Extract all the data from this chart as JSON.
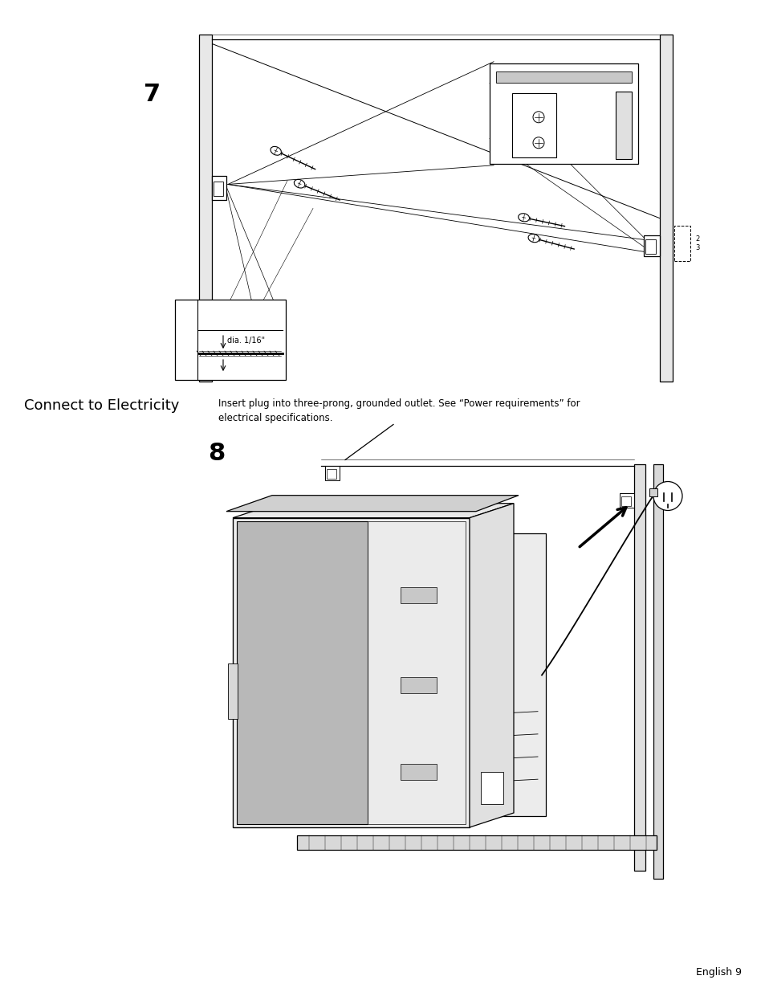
{
  "page_width": 9.54,
  "page_height": 12.35,
  "dpi": 100,
  "background_color": "#ffffff",
  "section_title": "Connect to Electricity",
  "section_title_fontsize": 13,
  "description_text": "Insert plug into three-prong, grounded outlet. See “Power requirements” for\nelectrical specifications.",
  "description_fontsize": 8.5,
  "step7_label": "7",
  "step8_label": "8",
  "footer_text": "English 9",
  "footer_fontsize": 9,
  "color_white": "#ffffff",
  "color_black": "#000000",
  "color_light_gray": "#d8d8d8",
  "color_mid_gray": "#b0b0b0",
  "color_bg_gray": "#f2f2f2",
  "color_dark_gray": "#888888"
}
